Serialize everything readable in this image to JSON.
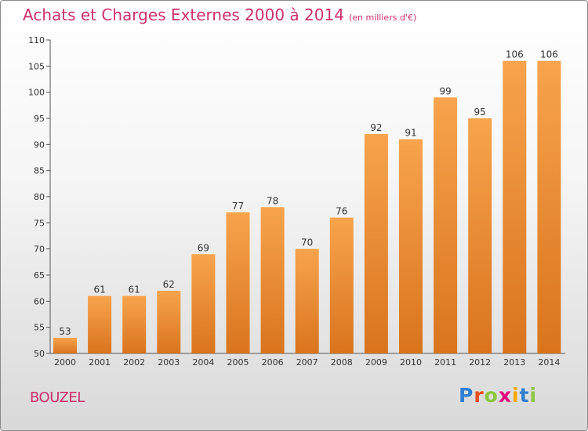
{
  "header": {
    "title": "Achats et Charges Externes 2000 à 2014",
    "unit": "(en milliers d'€)"
  },
  "footer": {
    "place": "BOUZEL",
    "logo": "Proxiti"
  },
  "colors": {
    "bar_light": "#f7a44d",
    "bar_dark": "#d9741d",
    "title": "#cc2f6c"
  },
  "chart_data": {
    "type": "bar",
    "title": "Achats et Charges Externes 2000 à 2014",
    "subtitle": "(en milliers d'€)",
    "categories": [
      "2000",
      "2001",
      "2002",
      "2003",
      "2004",
      "2005",
      "2006",
      "2007",
      "2008",
      "2009",
      "2010",
      "2011",
      "2012",
      "2013",
      "2014"
    ],
    "values": [
      53,
      61,
      61,
      62,
      69,
      77,
      78,
      70,
      76,
      92,
      91,
      99,
      95,
      106,
      106
    ],
    "ylim": [
      50,
      110
    ],
    "yticks": [
      50,
      55,
      60,
      65,
      70,
      75,
      80,
      85,
      90,
      95,
      100,
      105,
      110
    ],
    "grid": false,
    "data_labels": true
  }
}
